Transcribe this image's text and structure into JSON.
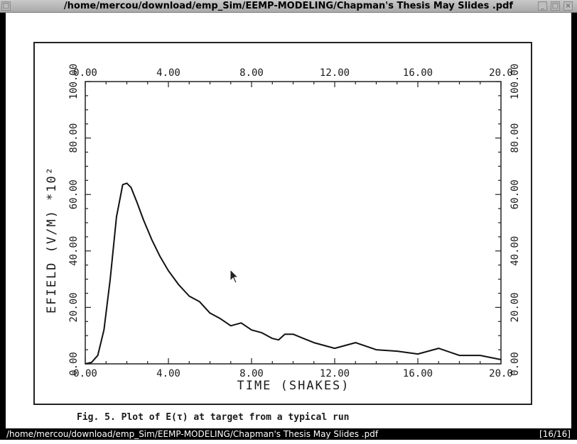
{
  "window": {
    "title": "/home/mercou/download/emp_Sim/EEMP-MODELING/Chapman's Thesis May Slides .pdf",
    "buttons": {
      "left": "□",
      "minimize": "_",
      "maximize": "□",
      "close": "×"
    }
  },
  "statusbar": {
    "path": "/home/mercou/download/emp_Sim/EEMP-MODELING/Chapman's Thesis May Slides .pdf",
    "page_indicator": "[16/16]"
  },
  "figure": {
    "caption": "Fig. 5.  Plot of E(τ) at target from a typical run"
  },
  "chart_data": {
    "type": "line",
    "xlabel": "TIME (SHAKES)",
    "ylabel": "EFIELD (V/M) *10²",
    "xlim": [
      0,
      20
    ],
    "ylim": [
      0,
      100
    ],
    "x_ticks": [
      "0.00",
      "4.00",
      "8.00",
      "12.00",
      "16.00",
      "20.0"
    ],
    "y_ticks": [
      "0.00",
      "20.00",
      "40.00",
      "60.00",
      "80.00",
      "100.00"
    ],
    "grid": false,
    "series": [
      {
        "x": [
          0.0,
          0.3,
          0.6,
          0.9,
          1.2,
          1.5,
          1.8,
          2.0,
          2.2,
          2.5,
          2.8,
          3.2,
          3.6,
          4.0,
          4.5,
          5.0,
          5.5,
          6.0,
          6.5,
          7.0,
          7.5,
          8.0,
          8.5,
          9.0,
          9.3,
          9.6,
          10.0,
          10.5,
          11.0,
          12.0,
          12.5,
          13.0,
          14.0,
          15.0,
          16.0,
          17.0,
          18.0,
          19.0,
          20.0
        ],
        "y": [
          0.0,
          0.5,
          3.0,
          12.0,
          30.0,
          52.0,
          63.5,
          64.0,
          62.5,
          57.0,
          51.0,
          44.0,
          38.0,
          33.0,
          28.0,
          24.0,
          22.0,
          18.0,
          16.0,
          13.5,
          14.5,
          12.0,
          11.0,
          9.0,
          8.5,
          10.5,
          10.5,
          9.0,
          7.5,
          5.5,
          6.5,
          7.5,
          5.0,
          4.5,
          3.5,
          5.5,
          3.0,
          3.0,
          1.5
        ]
      }
    ]
  }
}
